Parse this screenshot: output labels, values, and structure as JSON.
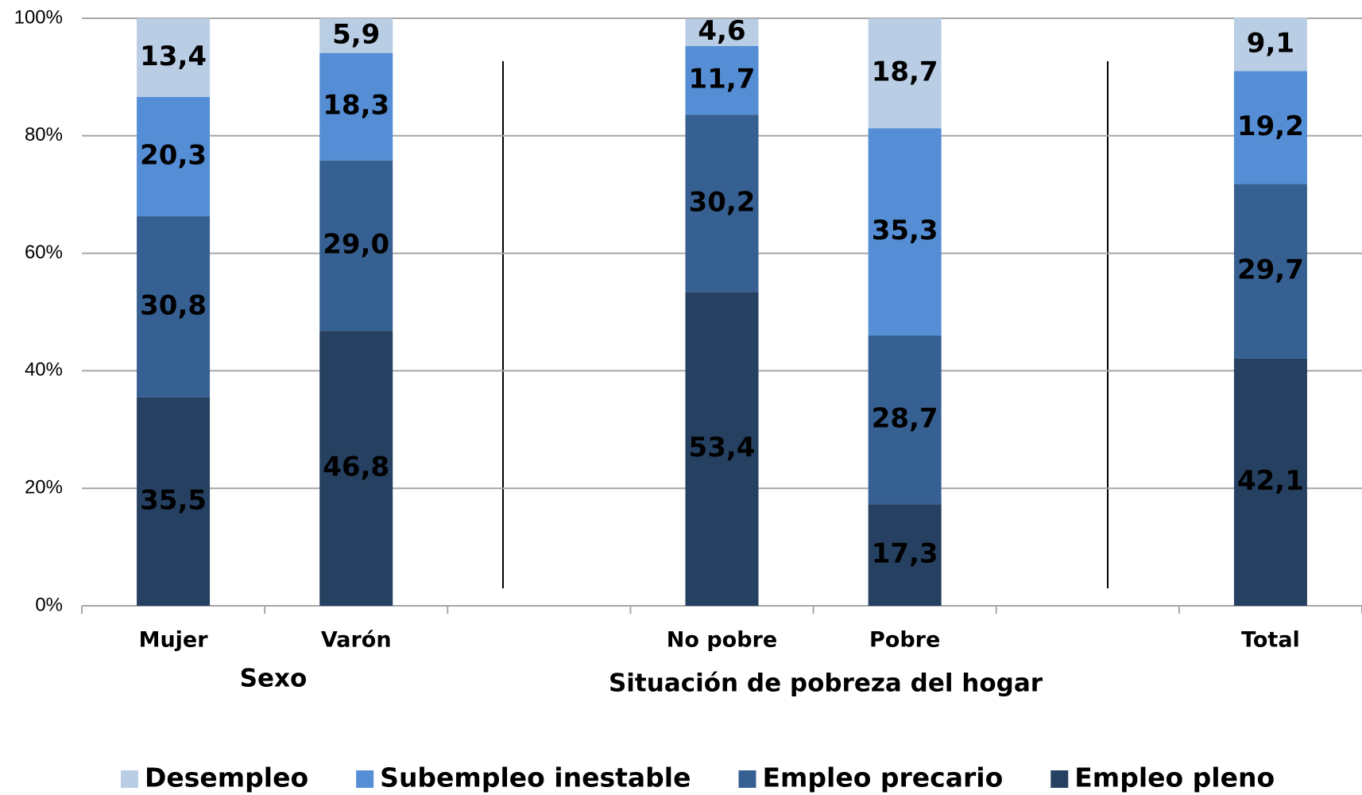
{
  "chart_data": {
    "type": "stacked_bar",
    "categories": [
      "Mujer",
      "Varón",
      null,
      "No pobre",
      "Pobre",
      null,
      "Total"
    ],
    "annotations": [
      "Sexo",
      "Situación de pobreza del hogar"
    ],
    "series": [
      {
        "name": "Desempleo",
        "color": "#b9cde5",
        "values": [
          13.4,
          5.9,
          null,
          4.6,
          18.7,
          null,
          9.1
        ],
        "value_labels": [
          "13,4",
          "5,9",
          null,
          "4,6",
          "18,7",
          null,
          "9,1"
        ]
      },
      {
        "name": "Subempleo inestable",
        "color": "#558ed5",
        "values": [
          20.3,
          18.3,
          null,
          11.7,
          35.3,
          null,
          19.2
        ],
        "value_labels": [
          "20,3",
          "18,3",
          null,
          "11,7",
          "35,3",
          null,
          "19,2"
        ]
      },
      {
        "name": "Empleo precario",
        "color": "#376092",
        "values": [
          30.8,
          29.0,
          null,
          30.2,
          28.7,
          null,
          29.7
        ],
        "value_labels": [
          "30,8",
          "29,0",
          null,
          "30,2",
          "28,7",
          null,
          "29,7"
        ]
      },
      {
        "name": "Empleo pleno",
        "color": "#254061",
        "values": [
          35.5,
          46.8,
          null,
          53.4,
          17.3,
          null,
          42.1
        ],
        "value_labels": [
          "35,5",
          "46,8",
          null,
          "53,4",
          "17,3",
          null,
          "42,1"
        ]
      }
    ],
    "ylim": [
      0,
      100
    ],
    "yticks": [
      {
        "value": 0,
        "label": "0%"
      },
      {
        "value": 20,
        "label": "20%"
      },
      {
        "value": 40,
        "label": "40%"
      },
      {
        "value": 60,
        "label": "60%"
      },
      {
        "value": 80,
        "label": "80%"
      },
      {
        "value": 100,
        "label": "100%"
      }
    ],
    "grid": true,
    "legend": "bottom"
  }
}
